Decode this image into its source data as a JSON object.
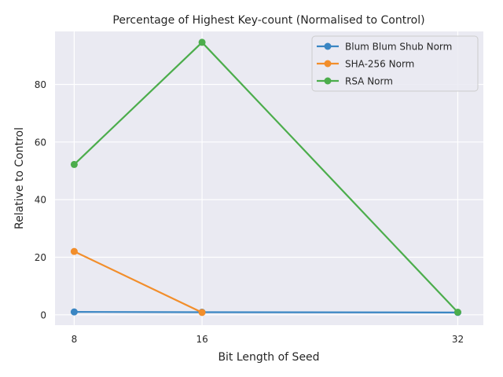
{
  "chart_data": {
    "type": "line",
    "title": "Percentage of Highest Key-count (Normalised to Control)",
    "xlabel": "Bit Length of Seed",
    "ylabel": "Relative to Control",
    "x": [
      8,
      16,
      32
    ],
    "xlim": [
      6.8,
      33.6
    ],
    "ylim": [
      -3.6,
      98.4
    ],
    "xticks": [
      8,
      16,
      32
    ],
    "yticks": [
      0,
      20,
      40,
      60,
      80
    ],
    "grid": true,
    "legend_position": "top-right",
    "series": [
      {
        "name": "Blum Blum Shub Norm",
        "color": "#3a86c3",
        "values": [
          1.0,
          0.9,
          0.8
        ]
      },
      {
        "name": "SHA-256 Norm",
        "color": "#f28e2b",
        "values": [
          22.0,
          0.8,
          null
        ]
      },
      {
        "name": "RSA Norm",
        "color": "#4cad4c",
        "values": [
          52.2,
          94.6,
          0.9
        ]
      }
    ]
  }
}
